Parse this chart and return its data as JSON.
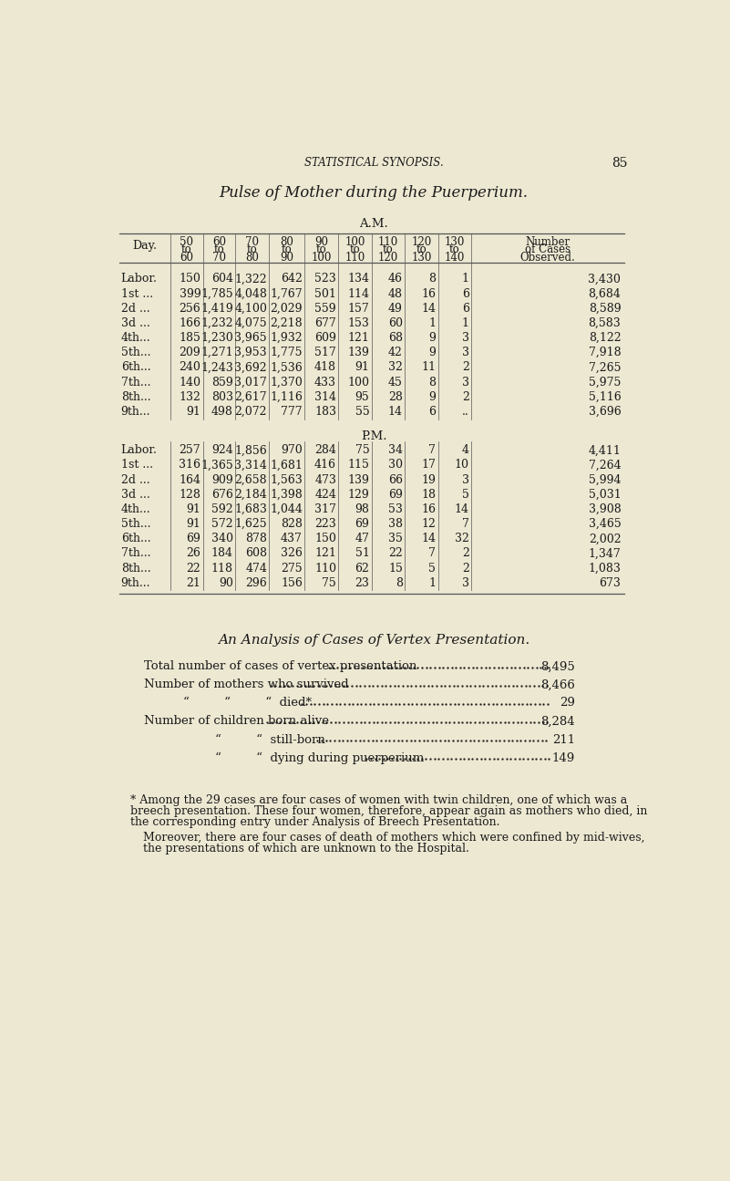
{
  "bg_color": "#ede8d2",
  "text_color": "#1a1a1a",
  "page_header": "STATISTICAL SYNOPSIS.",
  "page_number": "85",
  "main_title": "Pulse of Mother during the Puerperium.",
  "am_label": "A.M.",
  "pm_label": "P.M.",
  "am_rows": [
    [
      "Labor.",
      "150",
      "604",
      "1,322",
      "642",
      "523",
      "134",
      "46",
      "8",
      "1",
      "3,430"
    ],
    [
      "1st ...",
      "399",
      "1,785",
      "4,048",
      "1,767",
      "501",
      "114",
      "48",
      "16",
      "6",
      "8,684"
    ],
    [
      "2d ...",
      "256",
      "1,419",
      "4,100",
      "2,029",
      "559",
      "157",
      "49",
      "14",
      "6",
      "8,589"
    ],
    [
      "3d ...",
      "166",
      "1,232",
      "4,075",
      "2,218",
      "677",
      "153",
      "60",
      "1",
      "1",
      "8,583"
    ],
    [
      "4th...",
      "185",
      "1,230",
      "3,965",
      "1,932",
      "609",
      "121",
      "68",
      "9",
      "3",
      "8,122"
    ],
    [
      "5th...",
      "209",
      "1,271",
      "3,953",
      "1,775",
      "517",
      "139",
      "42",
      "9",
      "3",
      "7,918"
    ],
    [
      "6th...",
      "240",
      "1,243",
      "3,692",
      "1,536",
      "418",
      "91",
      "32",
      "11",
      "2",
      "7,265"
    ],
    [
      "7th...",
      "140",
      "859",
      "3,017",
      "1,370",
      "433",
      "100",
      "45",
      "8",
      "3",
      "5,975"
    ],
    [
      "8th...",
      "132",
      "803",
      "2,617",
      "1,116",
      "314",
      "95",
      "28",
      "9",
      "2",
      "5,116"
    ],
    [
      "9th...",
      "91",
      "498",
      "2,072",
      "777",
      "183",
      "55",
      "14",
      "6",
      "..",
      "3,696"
    ]
  ],
  "pm_rows": [
    [
      "Labor.",
      "257",
      "924",
      "1,856",
      "970",
      "284",
      "75",
      "34",
      "7",
      "4",
      "4,411"
    ],
    [
      "1st ...",
      "316",
      "1,365",
      "3,314",
      "1,681",
      "416",
      "115",
      "30",
      "17",
      "10",
      "7,264"
    ],
    [
      "2d ...",
      "164",
      "909",
      "2,658",
      "1,563",
      "473",
      "139",
      "66",
      "19",
      "3",
      "5,994"
    ],
    [
      "3d ...",
      "128",
      "676",
      "2,184",
      "1,398",
      "424",
      "129",
      "69",
      "18",
      "5",
      "5,031"
    ],
    [
      "4th...",
      "91",
      "592",
      "1,683",
      "1,044",
      "317",
      "98",
      "53",
      "16",
      "14",
      "3,908"
    ],
    [
      "5th...",
      "91",
      "572",
      "1,625",
      "828",
      "223",
      "69",
      "38",
      "12",
      "7",
      "3,465"
    ],
    [
      "6th...",
      "69",
      "340",
      "878",
      "437",
      "150",
      "47",
      "35",
      "14",
      "32",
      "2,002"
    ],
    [
      "7th...",
      "26",
      "184",
      "608",
      "326",
      "121",
      "51",
      "22",
      "7",
      "2",
      "1,347"
    ],
    [
      "8th...",
      "22",
      "118",
      "474",
      "275",
      "110",
      "62",
      "15",
      "5",
      "2",
      "1,083"
    ],
    [
      "9th...",
      "21",
      "90",
      "296",
      "156",
      "75",
      "23",
      "8",
      "1",
      "3",
      "673"
    ]
  ],
  "analysis_title": "An Analysis of Cases of Vertex Presentation.",
  "analysis_lines": [
    [
      "Total number of cases of vertex presentation",
      "8,495",
      75
    ],
    [
      "Number of mothers who survived",
      "8,466",
      75
    ],
    [
      "“         “         “  died*",
      "29",
      130
    ],
    [
      "Number of children born alive",
      "8,284",
      75
    ],
    [
      "“         “  still-born ",
      "211",
      175
    ],
    [
      "“         “  dying during puerperium",
      "149",
      175
    ]
  ],
  "footnote_para1": "* Among the 29 cases are four cases of women with twin children, one of which was a breech presentation.  These four women, therefore, appear again as mothers who died, in the corresponding entry under Analysis of Breech Presentation.",
  "footnote_para2": "Moreover, there are four cases of death of mothers which were confined by mid-wives, the presentations of which are unknown to the Hospital."
}
